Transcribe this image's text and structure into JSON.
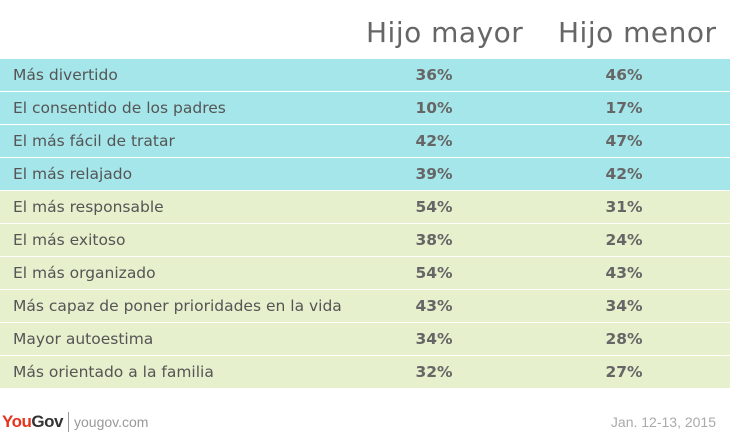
{
  "chart_data": {
    "type": "table",
    "columns": [
      "Hijo mayor",
      "Hijo menor"
    ],
    "rows": [
      {
        "label": "Más divertido",
        "values": [
          "36%",
          "46%"
        ],
        "group": "blue"
      },
      {
        "label": "El consentido de los padres",
        "values": [
          "10%",
          "17%"
        ],
        "group": "blue"
      },
      {
        "label": "El más fácil de tratar",
        "values": [
          "42%",
          "47%"
        ],
        "group": "blue"
      },
      {
        "label": "El más relajado",
        "values": [
          "39%",
          "42%"
        ],
        "group": "blue"
      },
      {
        "label": "El más responsable",
        "values": [
          "54%",
          "31%"
        ],
        "group": "green"
      },
      {
        "label": "El más exitoso",
        "values": [
          "38%",
          "24%"
        ],
        "group": "green"
      },
      {
        "label": "El más organizado",
        "values": [
          "54%",
          "43%"
        ],
        "group": "green"
      },
      {
        "label": "Más capaz de poner prioridades en la vida",
        "values": [
          "43%",
          "34%"
        ],
        "group": "green"
      },
      {
        "label": "Mayor autoestima",
        "values": [
          "34%",
          "28%"
        ],
        "group": "green"
      },
      {
        "label": "Más orientado a la familia",
        "values": [
          "32%",
          "27%"
        ],
        "group": "green"
      }
    ],
    "colors": {
      "blue": "#a5e6ea",
      "green": "#e6f0cd"
    }
  },
  "footer": {
    "brand_you": "You",
    "brand_gov": "Gov",
    "site": "yougov.com",
    "date": "Jan. 12-13, 2015"
  }
}
